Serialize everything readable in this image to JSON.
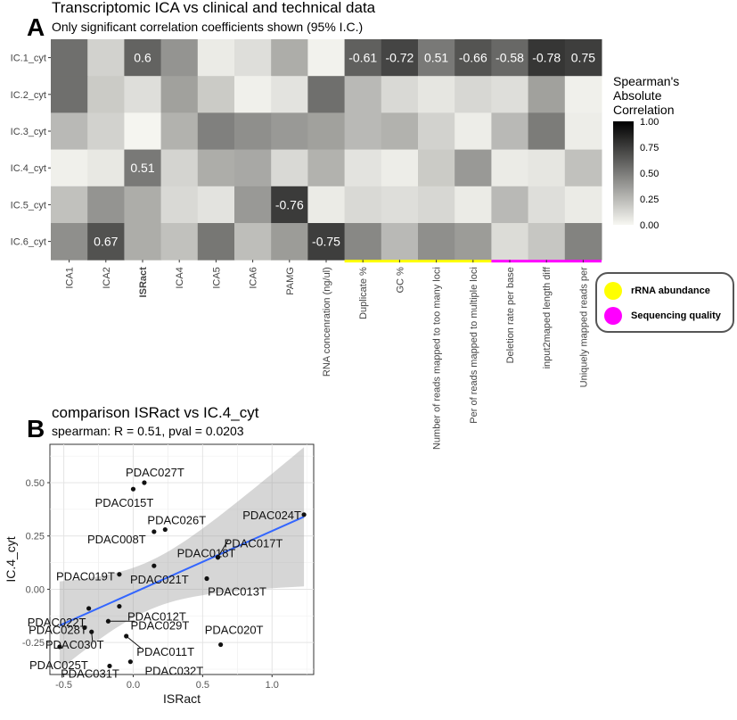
{
  "panel_a": {
    "letter": "A",
    "title": "Transcriptomic ICA vs clinical and technical data",
    "subtitle": "Only significant correlation coefficients shown (95% I.C.)",
    "legend": {
      "title_lines": [
        "Spearman's",
        "Absolute",
        "Correlation"
      ],
      "ticks": [
        "1.00",
        "0.75",
        "0.50",
        "0.25",
        "0.00"
      ],
      "gradient_colors": [
        "#000000",
        "#f7f7f2"
      ]
    },
    "group_legend": {
      "items": [
        {
          "label": "rRNA abundance",
          "color": "#ffff00"
        },
        {
          "label": "Sequencing quality",
          "color": "#ff00ff"
        }
      ]
    }
  },
  "panel_b": {
    "letter": "B",
    "title": "comparison ISRact vs IC.4_cyt",
    "subtitle": "spearman: R = 0.51, pval = 0.0203"
  },
  "chart_data": [
    {
      "type": "heatmap",
      "rows": [
        "IC.1_cyt",
        "IC.2_cyt",
        "IC.3_cyt",
        "IC.4_cyt",
        "IC.5_cyt",
        "IC.6_cyt"
      ],
      "columns": [
        "ICA1",
        "ICA2",
        "ISRact",
        "ICA4",
        "ICA5",
        "ICA6",
        "PAMG",
        "RNA concenration (ng/ul)",
        "Duplicate %",
        "GC %",
        "Number of reads mapped to too many loci",
        "Per of reads mapped to multiple loci",
        "Deletion rate per base",
        "input2maped length diff",
        "Uniquely mapped reads per"
      ],
      "bold_columns": [
        "ISRact"
      ],
      "column_groups": [
        {
          "name": "rRNA abundance",
          "color": "#ffff00",
          "columns": [
            "Duplicate %",
            "GC %",
            "Number of reads mapped to too many loci",
            "Per of reads mapped to multiple loci"
          ]
        },
        {
          "name": "Sequencing quality",
          "color": "#ff00ff",
          "columns": [
            "Deletion rate per base",
            "input2maped length diff",
            "Uniquely mapped reads per"
          ]
        }
      ],
      "values": [
        [
          0.55,
          0.15,
          0.6,
          0.4,
          0.05,
          0.1,
          0.3,
          0.02,
          0.61,
          0.72,
          0.51,
          0.66,
          0.58,
          0.78,
          0.75
        ],
        [
          0.55,
          0.18,
          0.1,
          0.35,
          0.18,
          0.03,
          0.08,
          0.55,
          0.25,
          0.12,
          0.07,
          0.13,
          0.1,
          0.35,
          0.03
        ],
        [
          0.25,
          0.15,
          0.01,
          0.28,
          0.48,
          0.42,
          0.38,
          0.35,
          0.25,
          0.28,
          0.15,
          0.04,
          0.25,
          0.5,
          0.04
        ],
        [
          0.03,
          0.06,
          0.51,
          0.14,
          0.3,
          0.32,
          0.12,
          0.28,
          0.08,
          0.04,
          0.18,
          0.38,
          0.05,
          0.07,
          0.22
        ],
        [
          0.22,
          0.4,
          0.3,
          0.12,
          0.08,
          0.38,
          0.76,
          0.05,
          0.12,
          0.1,
          0.13,
          0.05,
          0.25,
          0.1,
          0.05
        ],
        [
          0.42,
          0.67,
          0.3,
          0.22,
          0.52,
          0.23,
          0.37,
          0.75,
          0.45,
          0.25,
          0.42,
          0.37,
          0.11,
          0.2,
          0.47
        ]
      ],
      "labels": [
        [
          "",
          "",
          "0.6",
          "",
          "",
          "",
          "",
          "",
          "-0.61",
          "-0.72",
          "0.51",
          "-0.66",
          "-0.58",
          "-0.78",
          "0.75"
        ],
        [
          "",
          "",
          "",
          "",
          "",
          "",
          "",
          "",
          "",
          "",
          "",
          "",
          "",
          "",
          ""
        ],
        [
          "",
          "",
          "",
          "",
          "",
          "",
          "",
          "",
          "",
          "",
          "",
          "",
          "",
          "",
          ""
        ],
        [
          "",
          "",
          "0.51",
          "",
          "",
          "",
          "",
          "",
          "",
          "",
          "",
          "",
          "",
          "",
          ""
        ],
        [
          "",
          "",
          "",
          "",
          "",
          "",
          "-0.76",
          "",
          "",
          "",
          "",
          "",
          "",
          "",
          ""
        ],
        [
          "",
          "0.67",
          "",
          "",
          "",
          "",
          "",
          "-0.75",
          "",
          "",
          "",
          "",
          "",
          "",
          ""
        ]
      ],
      "color_range": [
        0,
        1
      ]
    },
    {
      "type": "scatter",
      "xlabel": "ISRact",
      "ylabel": "IC.4_cyt",
      "xlim": [
        -0.6,
        1.3
      ],
      "ylim": [
        -0.4,
        0.68
      ],
      "xticks": [
        -0.5,
        0.0,
        0.5,
        1.0
      ],
      "xtick_labels": [
        "-0.5",
        "0.0",
        "0.5",
        "1.0"
      ],
      "yticks": [
        -0.25,
        0.0,
        0.25,
        0.5
      ],
      "ytick_labels": [
        "-0.25",
        "0.00",
        "0.25",
        "0.50"
      ],
      "grid": true,
      "points": [
        {
          "label": "PDAC027T",
          "x": 0.08,
          "y": 0.5
        },
        {
          "label": "PDAC015T",
          "x": 0.0,
          "y": 0.47
        },
        {
          "label": "PDAC026T",
          "x": 0.23,
          "y": 0.28
        },
        {
          "label": "PDAC008T",
          "x": 0.15,
          "y": 0.27
        },
        {
          "label": "PDAC024T",
          "x": 1.23,
          "y": 0.35
        },
        {
          "label": "PDAC017T",
          "x": 0.61,
          "y": 0.15
        },
        {
          "label": "PDAC018T",
          "x": 0.61,
          "y": 0.15
        },
        {
          "label": "PDAC021T",
          "x": 0.15,
          "y": 0.11
        },
        {
          "label": "PDAC013T",
          "x": 0.53,
          "y": 0.05
        },
        {
          "label": "PDAC019T",
          "x": -0.1,
          "y": 0.07
        },
        {
          "label": "PDAC012T",
          "x": -0.1,
          "y": -0.08
        },
        {
          "label": "PDAC022T",
          "x": -0.32,
          "y": -0.09
        },
        {
          "label": "PDAC028T",
          "x": -0.35,
          "y": -0.18
        },
        {
          "label": "PDAC029T",
          "x": -0.18,
          "y": -0.15
        },
        {
          "label": "PDAC030T",
          "x": -0.3,
          "y": -0.2
        },
        {
          "label": "PDAC011T",
          "x": -0.05,
          "y": -0.22
        },
        {
          "label": "PDAC020T",
          "x": 0.63,
          "y": -0.26
        },
        {
          "label": "PDAC025T",
          "x": -0.53,
          "y": -0.27
        },
        {
          "label": "PDAC032T",
          "x": -0.02,
          "y": -0.34
        },
        {
          "label": "PDAC031T",
          "x": -0.17,
          "y": -0.36
        }
      ],
      "fit_line": {
        "x": [
          -0.53,
          1.23
        ],
        "y": [
          -0.17,
          0.34
        ],
        "color": "#3366ff"
      }
    }
  ]
}
